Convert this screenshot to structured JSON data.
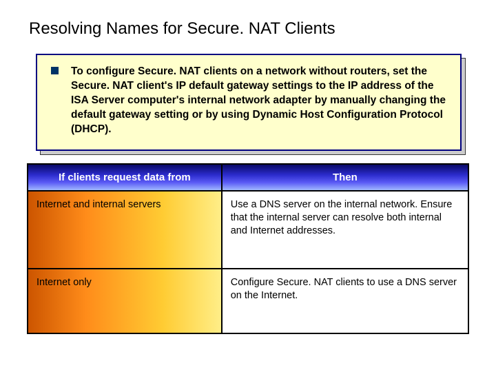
{
  "title": "Resolving Names for Secure. NAT Clients",
  "bullet_text": "To configure Secure. NAT clients on a network without routers, set the Secure. NAT client's IP default gateway settings to the IP address of the ISA Server computer's internal network adapter by manually changing the default gateway setting or by using Dynamic Host Configuration Protocol (DHCP).",
  "box": {
    "bg_color": "#ffffcc",
    "border_color": "#000080",
    "bullet_color": "#003366"
  },
  "table": {
    "headers": [
      "If clients request data from",
      "Then"
    ],
    "header_gradient": [
      "#0a0a66",
      "#2b2bcc",
      "#5a5af5",
      "#a0b8ff"
    ],
    "header_text_color": "#ffffff",
    "left_col_gradient": [
      "#cc5500",
      "#ff8c1a",
      "#ffcc33",
      "#ffee88"
    ],
    "rows": [
      {
        "left": "Internet and internal servers",
        "right": "Use a DNS server on the internal network. Ensure that the internal server can resolve both internal and Internet addresses."
      },
      {
        "left": "Internet only",
        "right": "Configure Secure. NAT clients to use a DNS server on the Internet."
      }
    ]
  }
}
